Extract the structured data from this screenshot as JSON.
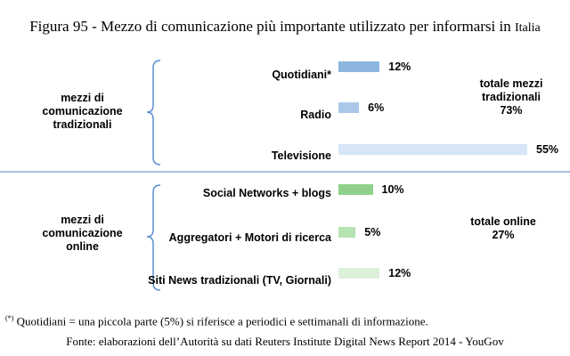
{
  "title": {
    "main": "Figura 95 - Mezzo di comunicazione più importante utilizzato per informarsi in",
    "suffix": "Italia"
  },
  "chart_data": {
    "type": "bar",
    "orientation": "horizontal",
    "groups": [
      {
        "label": "mezzi di comunicazione tradizionali",
        "total_label": "totale mezzi tradizionali",
        "total_value": "73%",
        "categories": [
          "Quotidiani*",
          "Radio",
          "Televisione"
        ],
        "values": [
          12,
          6,
          55
        ],
        "value_labels": [
          "12%",
          "6%",
          "55%"
        ],
        "colors": [
          "#8db7df",
          "#a9c8ea",
          "#d6e6f6"
        ]
      },
      {
        "label": "mezzi di comunicazione online",
        "total_label": "totale online",
        "total_value": "27%",
        "categories": [
          "Social Networks + blogs",
          "Aggregatori + Motori di ricerca",
          "Siti News tradizionali (TV, Giornali)"
        ],
        "values": [
          10,
          5,
          12
        ],
        "value_labels": [
          "10%",
          "5%",
          "12%"
        ],
        "colors": [
          "#8fd18b",
          "#b5e3b1",
          "#dcf1da"
        ]
      }
    ],
    "grid": false,
    "legend": "none"
  },
  "footnote": {
    "marker": "(*)",
    "text": " Quotidiani = una piccola parte (5%) si riferisce a periodici e settimanali di informazione."
  },
  "source": "Fonte: elaborazioni dell’Autorità su dati Reuters Institute Digital News Report 2014 - YouGov"
}
